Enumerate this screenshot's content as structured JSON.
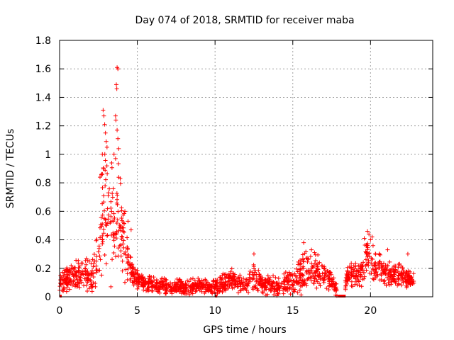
{
  "chart_data": {
    "type": "scatter",
    "title": "Day 074 of 2018, SRMTID for receiver maba",
    "xlabel": "GPS time / hours",
    "ylabel": "SRMTID / TECUs",
    "xlim": [
      0,
      24
    ],
    "ylim": [
      0,
      1.8
    ],
    "xticks": [
      0,
      5,
      10,
      15,
      20
    ],
    "xtick_labels": [
      "0",
      "5",
      "10",
      "15",
      "20"
    ],
    "yticks": [
      0,
      0.2,
      0.4,
      0.6,
      0.8,
      1.0,
      1.2,
      1.4,
      1.6,
      1.8
    ],
    "ytick_labels": [
      "0",
      "0.2",
      "0.4",
      "0.6",
      "0.8",
      "1",
      "1.2",
      "1.4",
      "1.6",
      "1.8"
    ],
    "grid": true,
    "marker": "+",
    "color": "#ff0000",
    "envelope": {
      "x": [
        0.0,
        0.5,
        1.0,
        1.5,
        2.0,
        2.4,
        2.7,
        2.9,
        3.2,
        3.5,
        3.7,
        4.0,
        4.3,
        4.7,
        5.0,
        5.5,
        6.0,
        7.0,
        8.0,
        9.0,
        10.0,
        11.0,
        12.0,
        12.5,
        13.0,
        14.0,
        15.0,
        15.5,
        16.0,
        16.5,
        17.0,
        17.5,
        17.8,
        18.2,
        18.5,
        19.0,
        19.5,
        19.8,
        20.2,
        20.5,
        21.0,
        21.5,
        22.0,
        22.5,
        22.8
      ],
      "mid": [
        0.1,
        0.12,
        0.15,
        0.15,
        0.15,
        0.25,
        0.5,
        0.7,
        0.6,
        0.55,
        0.65,
        0.45,
        0.3,
        0.15,
        0.12,
        0.1,
        0.08,
        0.07,
        0.07,
        0.08,
        0.07,
        0.12,
        0.08,
        0.15,
        0.09,
        0.08,
        0.1,
        0.15,
        0.2,
        0.18,
        0.14,
        0.12,
        0.05,
        0.0,
        0.15,
        0.15,
        0.18,
        0.3,
        0.22,
        0.2,
        0.17,
        0.15,
        0.15,
        0.12,
        0.1
      ],
      "spread": [
        0.05,
        0.06,
        0.08,
        0.09,
        0.1,
        0.12,
        0.3,
        0.35,
        0.25,
        0.22,
        0.3,
        0.2,
        0.14,
        0.06,
        0.05,
        0.04,
        0.04,
        0.04,
        0.04,
        0.04,
        0.04,
        0.06,
        0.04,
        0.07,
        0.05,
        0.05,
        0.06,
        0.09,
        0.1,
        0.09,
        0.07,
        0.05,
        0.05,
        0.0,
        0.06,
        0.07,
        0.08,
        0.1,
        0.1,
        0.08,
        0.07,
        0.06,
        0.06,
        0.05,
        0.04
      ]
    },
    "peaks": [
      {
        "x": 2.8,
        "y": 1.31
      },
      {
        "x": 2.85,
        "y": 1.27
      },
      {
        "x": 2.9,
        "y": 1.21
      },
      {
        "x": 2.95,
        "y": 1.15
      },
      {
        "x": 3.0,
        "y": 1.09
      },
      {
        "x": 3.05,
        "y": 1.05
      },
      {
        "x": 3.35,
        "y": 0.94
      },
      {
        "x": 3.5,
        "y": 1.0
      },
      {
        "x": 3.6,
        "y": 0.97
      },
      {
        "x": 3.7,
        "y": 1.61
      },
      {
        "x": 3.75,
        "y": 1.6
      },
      {
        "x": 3.65,
        "y": 1.49
      },
      {
        "x": 3.68,
        "y": 1.46
      },
      {
        "x": 3.6,
        "y": 1.27
      },
      {
        "x": 3.62,
        "y": 1.24
      },
      {
        "x": 3.7,
        "y": 1.17
      },
      {
        "x": 3.75,
        "y": 1.11
      },
      {
        "x": 3.8,
        "y": 1.04
      },
      {
        "x": 2.75,
        "y": 1.0
      },
      {
        "x": 2.6,
        "y": 0.84
      },
      {
        "x": 19.8,
        "y": 0.46
      },
      {
        "x": 19.9,
        "y": 0.44
      },
      {
        "x": 20.1,
        "y": 0.42
      },
      {
        "x": 19.6,
        "y": 0.41
      },
      {
        "x": 20.0,
        "y": 0.4
      },
      {
        "x": 15.7,
        "y": 0.38
      },
      {
        "x": 16.2,
        "y": 0.33
      },
      {
        "x": 16.4,
        "y": 0.31
      },
      {
        "x": 12.5,
        "y": 0.3
      },
      {
        "x": 21.1,
        "y": 0.33
      },
      {
        "x": 22.4,
        "y": 0.3
      },
      {
        "x": 3.9,
        "y": 0.83
      },
      {
        "x": 4.2,
        "y": 0.6
      },
      {
        "x": 4.4,
        "y": 0.53
      },
      {
        "x": 4.6,
        "y": 0.47
      },
      {
        "x": 2.3,
        "y": 0.07
      },
      {
        "x": 3.3,
        "y": 0.07
      }
    ],
    "zero_segments": [
      [
        0.0,
        0.05
      ],
      [
        10.0,
        10.1
      ],
      [
        17.9,
        18.4
      ]
    ]
  }
}
